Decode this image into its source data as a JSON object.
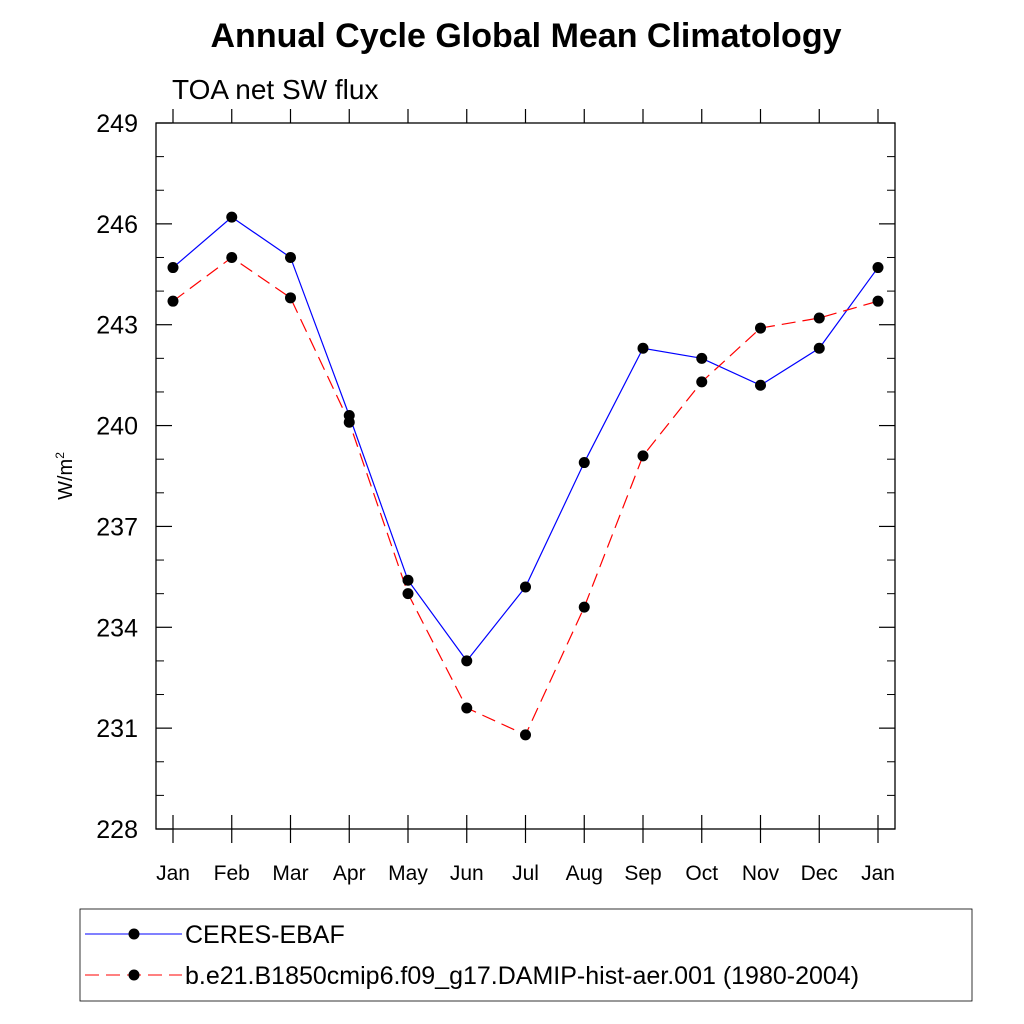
{
  "chart_data": {
    "type": "line",
    "title": "Annual Cycle Global Mean Climatology",
    "subtitle": "TOA net SW flux",
    "xlabel": "",
    "ylabel": "W/m",
    "ylabel_sup": "2",
    "categories": [
      "Jan",
      "Feb",
      "Mar",
      "Apr",
      "May",
      "Jun",
      "Jul",
      "Aug",
      "Sep",
      "Oct",
      "Nov",
      "Dec",
      "Jan"
    ],
    "ylim": [
      228,
      249
    ],
    "yticks": [
      228,
      231,
      234,
      237,
      240,
      243,
      246,
      249
    ],
    "ytick_labels": [
      "228",
      "231",
      "234",
      "237",
      "240",
      "243",
      "246",
      "249"
    ],
    "series": [
      {
        "name": "CERES-EBAF",
        "color": "#0000ff",
        "dash": "solid",
        "values": [
          244.7,
          246.2,
          245.0,
          240.3,
          235.4,
          233.0,
          235.2,
          238.9,
          242.3,
          242.0,
          241.2,
          242.3,
          244.7
        ]
      },
      {
        "name": "b.e21.B1850cmip6.f09_g17.DAMIP-hist-aer.001 (1980-2004)",
        "color": "#ff0000",
        "dash": "dashed",
        "values": [
          243.7,
          245.0,
          243.8,
          240.1,
          235.0,
          231.6,
          230.8,
          234.6,
          239.1,
          241.3,
          242.9,
          243.2,
          243.7
        ]
      }
    ],
    "legend_position": "bottom"
  }
}
